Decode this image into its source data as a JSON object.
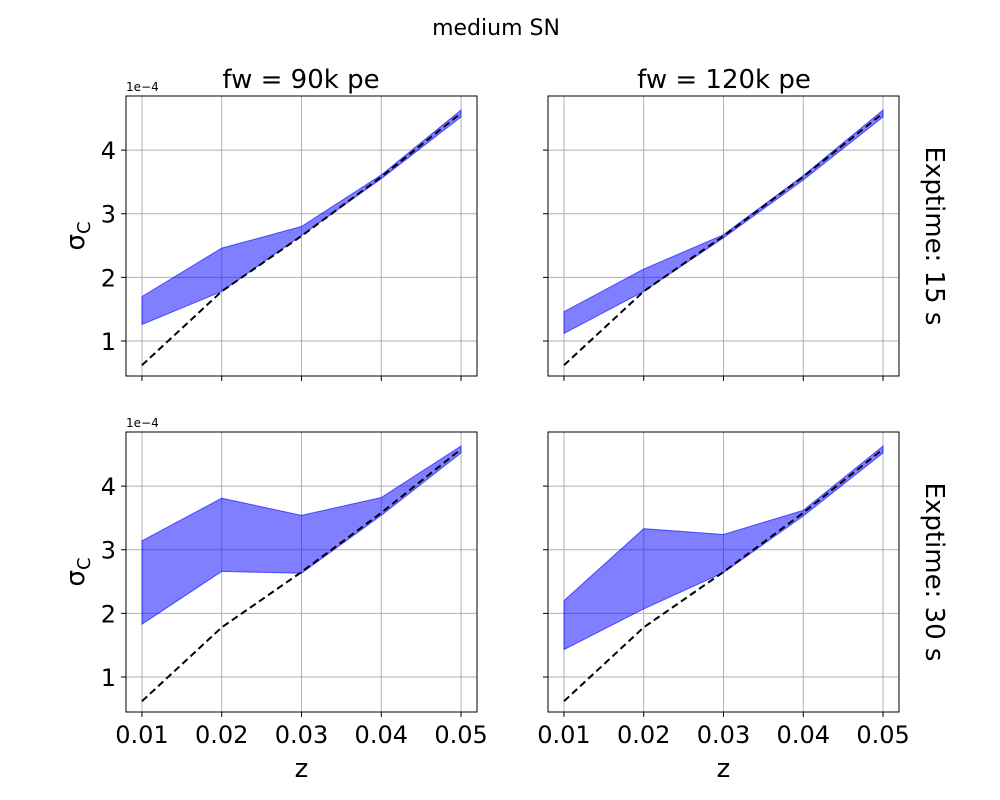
{
  "chart_data": {
    "type": "area",
    "suptitle": "medium SN",
    "column_titles": [
      "fw = 90k pe",
      "fw = 120k pe"
    ],
    "row_titles": [
      "Exptime: 15 s",
      "Exptime: 30 s"
    ],
    "xlabel": "z",
    "ylabel": "σ",
    "ylabel_subscript": "C",
    "offset_label": "1e−4",
    "x": [
      0.01,
      0.02,
      0.03,
      0.04,
      0.05
    ],
    "x_tick_labels": [
      "0.01",
      "0.02",
      "0.03",
      "0.04",
      "0.05"
    ],
    "xlim": [
      0.008,
      0.052
    ],
    "y_ticks": [
      1,
      2,
      3,
      4
    ],
    "ylim": [
      0.45,
      4.85
    ],
    "y_units_multiplier": 0.0001,
    "grid": true,
    "fill_color": "#0000ff",
    "fill_opacity": 0.5,
    "reference_color": "#000000",
    "reference_style": "dashed",
    "reference": [
      0.62,
      1.78,
      2.65,
      3.58,
      4.58
    ],
    "panels": [
      {
        "row": 0,
        "col": 0,
        "lower": [
          1.26,
          1.78,
          2.66,
          3.55,
          4.52
        ],
        "upper": [
          1.7,
          2.46,
          2.8,
          3.61,
          4.63
        ]
      },
      {
        "row": 0,
        "col": 1,
        "lower": [
          1.12,
          1.78,
          2.62,
          3.53,
          4.52
        ],
        "upper": [
          1.46,
          2.13,
          2.67,
          3.6,
          4.63
        ]
      },
      {
        "row": 1,
        "col": 0,
        "lower": [
          1.83,
          2.66,
          2.63,
          3.54,
          4.52
        ],
        "upper": [
          3.14,
          3.81,
          3.54,
          3.82,
          4.63
        ]
      },
      {
        "row": 1,
        "col": 1,
        "lower": [
          1.43,
          2.07,
          2.64,
          3.53,
          4.52
        ],
        "upper": [
          2.2,
          3.33,
          3.24,
          3.62,
          4.63
        ]
      }
    ]
  }
}
